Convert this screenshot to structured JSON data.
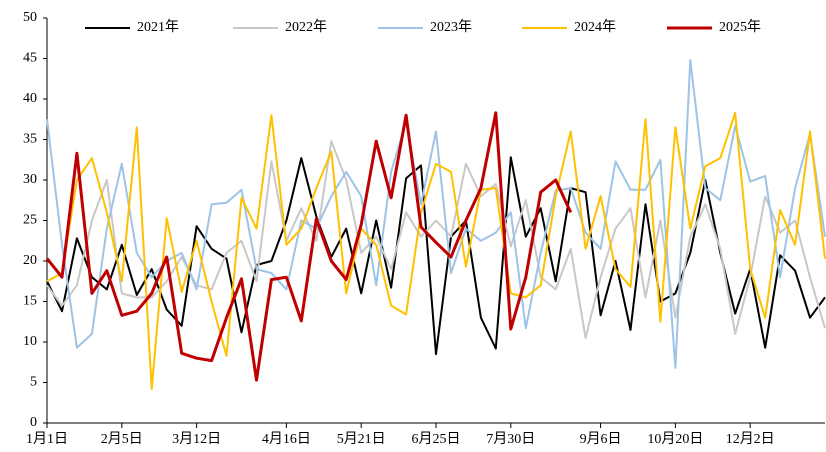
{
  "chart_data": {
    "type": "line",
    "categories": [
      "1月1日",
      null,
      null,
      null,
      null,
      "2月5日",
      null,
      null,
      null,
      null,
      "3月12日",
      null,
      null,
      null,
      null,
      null,
      "4月16日",
      null,
      null,
      null,
      null,
      "5月21日",
      null,
      null,
      null,
      null,
      "6月25日",
      null,
      null,
      null,
      null,
      "7月30日",
      null,
      null,
      null,
      null,
      null,
      "9月6日",
      null,
      null,
      null,
      null,
      "10月20日",
      null,
      null,
      null,
      null,
      "12月2日",
      null,
      null,
      null,
      null,
      null
    ],
    "ylim": [
      0,
      50
    ],
    "yticks": [
      0,
      5,
      10,
      15,
      20,
      25,
      30,
      35,
      40,
      45,
      50
    ],
    "legend": "top",
    "grid": false,
    "series": [
      {
        "name": "2021年",
        "color": "#000000",
        "values": [
          17.5,
          13.8,
          22.8,
          18,
          16.5,
          22,
          15.8,
          19,
          14,
          12,
          24.3,
          21.5,
          20.3,
          11.2,
          19.5,
          20,
          25,
          32.7,
          25.5,
          20.5,
          24,
          16,
          25,
          16.7,
          30.2,
          31.8,
          8.5,
          23,
          25,
          13,
          9.2,
          32.8,
          23,
          26.5,
          17.5,
          29,
          28.5,
          13.3,
          20,
          11.5,
          27,
          15,
          16,
          21,
          30,
          21,
          13.5,
          19,
          9.3,
          20.7,
          18.8,
          13,
          15.5
        ]
      },
      {
        "name": "2022年",
        "color": "#c8c8c8",
        "values": [
          17,
          14.5,
          17,
          25,
          30,
          16,
          15.5,
          15.5,
          17.5,
          20.5,
          17,
          16.5,
          21,
          22.5,
          17.5,
          32.3,
          22.5,
          26.5,
          22.5,
          34.8,
          30,
          21,
          23,
          19,
          26,
          23,
          25,
          23,
          32,
          28,
          29.5,
          21.8,
          27.5,
          18,
          16.5,
          21.5,
          10.5,
          18,
          24,
          26.5,
          15.5,
          25,
          13,
          23,
          27,
          21.5,
          11,
          18,
          28,
          23.5,
          25,
          18,
          11.7
        ]
      },
      {
        "name": "2023年",
        "color": "#9dc3e6",
        "values": [
          37.5,
          22,
          9.3,
          11,
          24,
          32,
          21,
          18,
          20,
          21,
          16.5,
          27,
          27.2,
          28.8,
          19,
          18.5,
          16.5,
          25,
          24,
          28,
          31,
          28,
          17,
          31,
          37.2,
          27,
          36,
          18.5,
          24,
          22.5,
          23.5,
          26,
          11.7,
          21,
          28.7,
          29,
          23.5,
          21.5,
          32.3,
          28.8,
          28.8,
          32.5,
          6.8,
          44.8,
          29,
          27.5,
          36.7,
          29.8,
          30.5,
          18,
          29,
          35.7,
          23
        ]
      },
      {
        "name": "2024年",
        "color": "#ffc000",
        "values": [
          17.5,
          18.5,
          30,
          32.7,
          26,
          17.5,
          36.5,
          4.2,
          25.3,
          16.2,
          22.5,
          15,
          8.3,
          27.8,
          24,
          38,
          22,
          24,
          29,
          33.5,
          16,
          24,
          22,
          14.5,
          13.4,
          26,
          32,
          31,
          19.3,
          28.8,
          29,
          16,
          15.5,
          17,
          28,
          36,
          21.5,
          28,
          19,
          16.8,
          37.5,
          12.5,
          36.5,
          24,
          31.7,
          32.7,
          38.3,
          19,
          13,
          26.3,
          22,
          36,
          20.3
        ]
      },
      {
        "name": "2025年",
        "color": "#c00000",
        "values": [
          20.3,
          18,
          33.3,
          16,
          18.8,
          13.3,
          13.8,
          16,
          20.5,
          8.6,
          8,
          7.7,
          13,
          17.8,
          5.3,
          17.7,
          18,
          12.6,
          25.2,
          20,
          17.7,
          24.5,
          34.8,
          27.8,
          38,
          24.2,
          22.3,
          20.5,
          25,
          29,
          38.3,
          11.6,
          18,
          28.5,
          30,
          26,
          null,
          null,
          null,
          null,
          null,
          null,
          null,
          null,
          null,
          null,
          null,
          null,
          null,
          null,
          null,
          null,
          null
        ]
      }
    ]
  }
}
